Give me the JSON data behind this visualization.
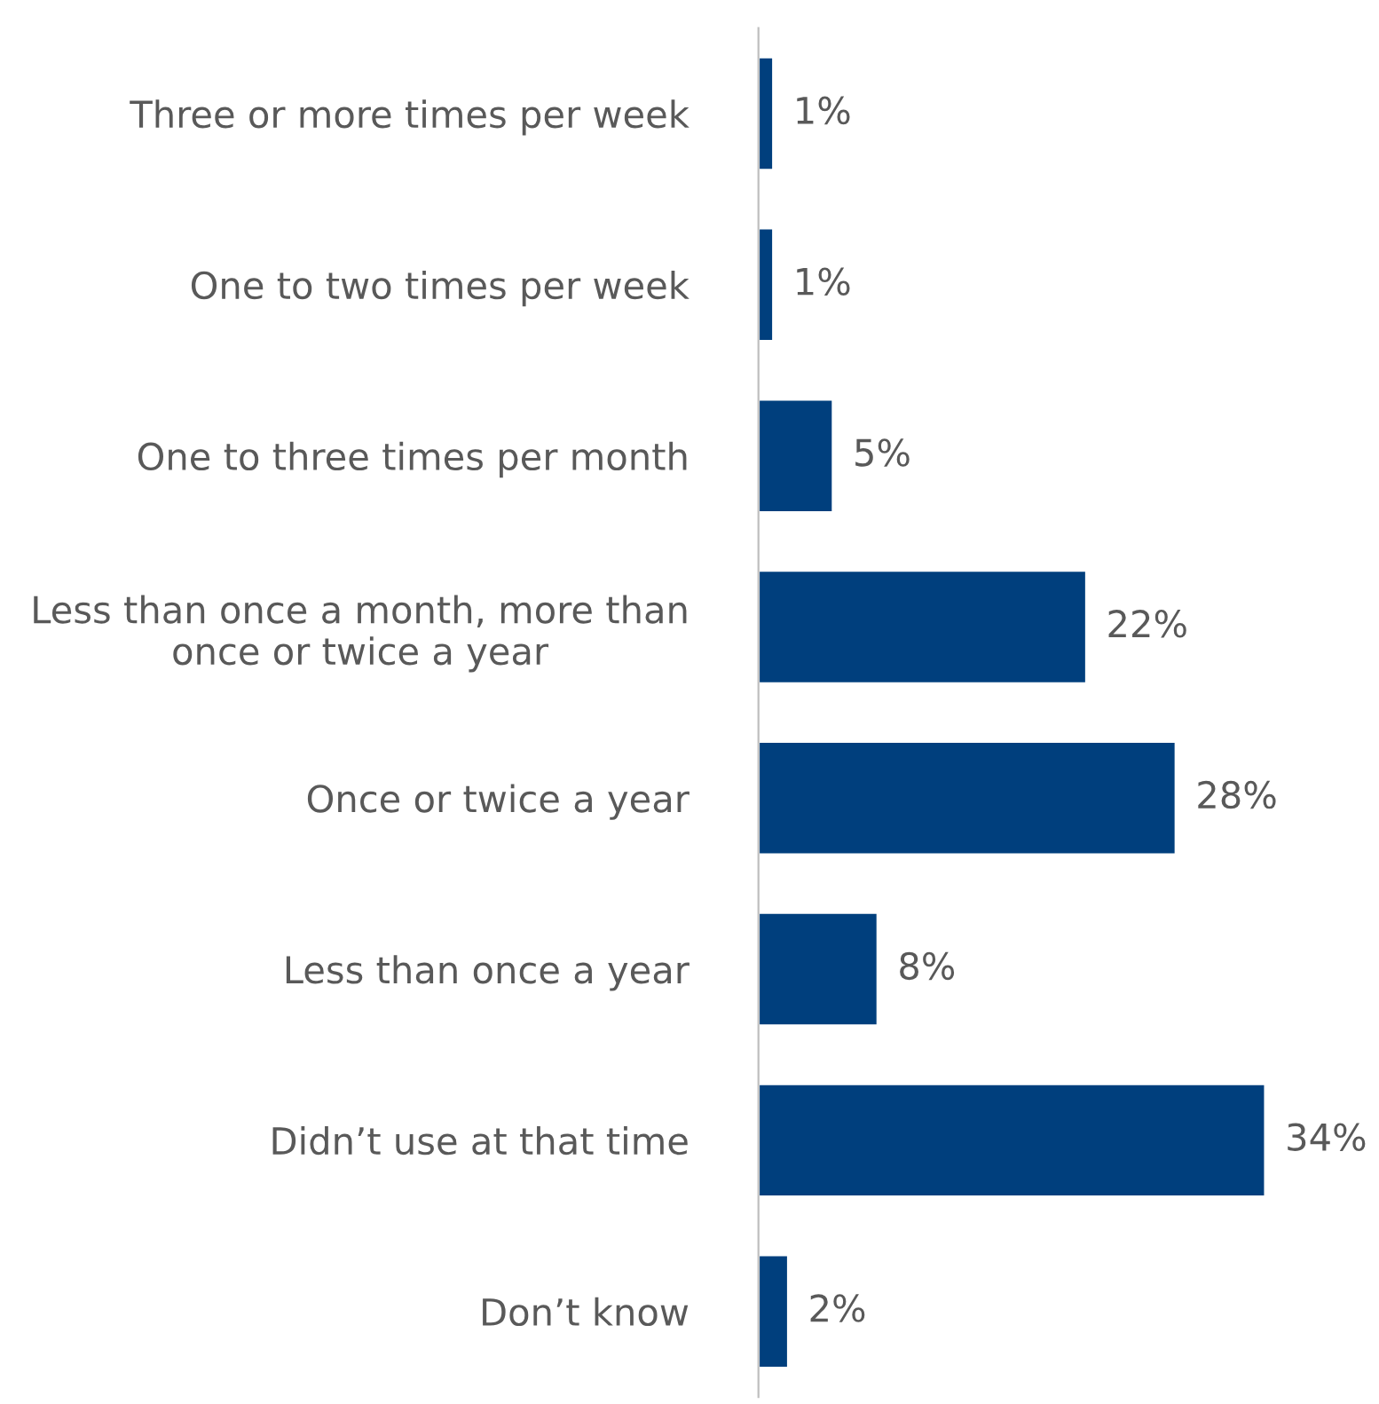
{
  "chart_data": {
    "type": "bar",
    "orientation": "horizontal",
    "categories": [
      "Three or more times per week",
      "One to two times per week",
      "One to three times per month",
      "Less than once a month, more than once or twice a year",
      "Once or twice a year",
      "Less than once a year",
      "Didn’t use at that time",
      "Don’t know"
    ],
    "values": [
      1,
      1,
      5,
      22,
      28,
      8,
      34,
      2
    ],
    "value_labels": [
      "1%",
      "1%",
      "5%",
      "22%",
      "28%",
      "8%",
      "34%",
      "2%"
    ],
    "color": "#003f7d",
    "grid": false,
    "legend": false
  }
}
